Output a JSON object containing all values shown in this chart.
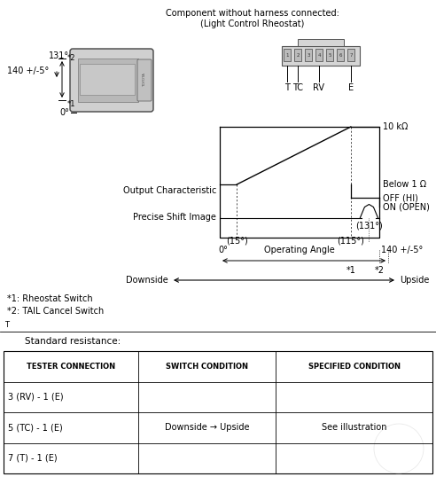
{
  "bg_color": "#ffffff",
  "title_text": "Component without harness connected:\n(Light Control Rheostat)",
  "graph_labels": {
    "10kohm": "10 kΩ",
    "below1ohm": "Below 1 Ω",
    "off_hi": "OFF (HI)",
    "on_open": "ON (OPEN)",
    "15deg": "(15°)",
    "115deg": "(115°)",
    "131deg": "(131°)",
    "0deg": "0°",
    "140deg": "140 +/-5°",
    "op_angle": "Operating Angle",
    "output_char": "Output Characteristic",
    "precise_shift": "Precise Shift Image",
    "star1": "*1",
    "star2": "*2",
    "downside": "Downside",
    "upside": "Upside"
  },
  "connector_labels": [
    "T",
    "TC",
    "RV",
    "E"
  ],
  "footnotes": [
    "*1: Rheostat Switch",
    "*2: TAIL Cancel Switch"
  ],
  "std_res_label": "Standard resistance:",
  "table_headers": [
    "TESTER CONNECTION",
    "SWITCH CONDITION",
    "SPECIFIED CONDITION"
  ],
  "table_rows": [
    [
      "3 (RV) - 1 (E)",
      "",
      ""
    ],
    [
      "5 (TC) - 1 (E)",
      "Downside → Upside",
      "See illustration"
    ],
    [
      "7 (T) - 1 (E)",
      "",
      ""
    ]
  ],
  "note_t": "T",
  "col_splits": [
    0.315,
    0.635
  ]
}
